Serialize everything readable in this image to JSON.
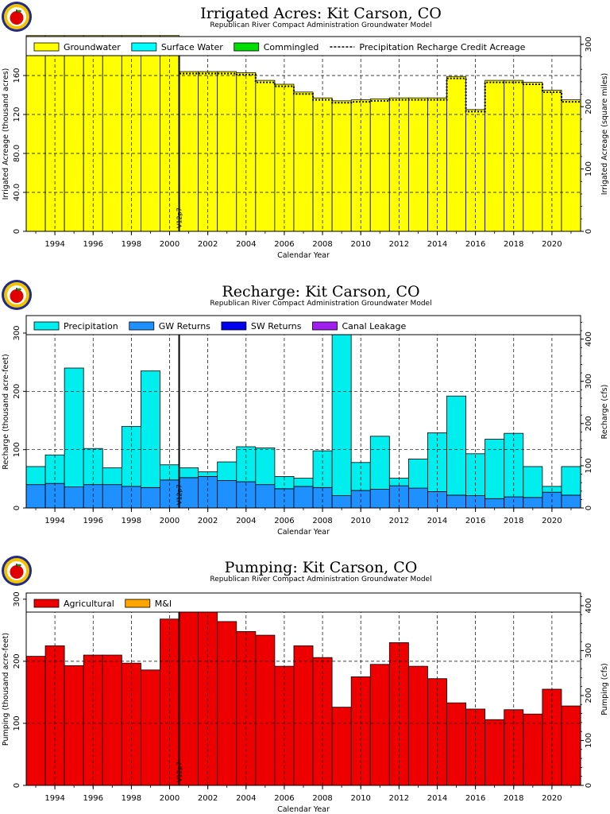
{
  "chart_data": [
    {
      "type": "bar",
      "title": "Irrigated Acres: Kit Carson, CO",
      "subtitle": "Republican River Compact Administration Groundwater Model",
      "xlabel": "Calendar Year",
      "ylabel": "Irrigated Acreage (thousand acres)",
      "ylabel_right": "Irrigated Acreage (square miles)",
      "ylim": [
        0,
        200
      ],
      "yticks": [
        "0",
        "40.0",
        "80.0",
        "120",
        "160"
      ],
      "ytick_values": [
        0,
        40,
        80,
        120,
        160
      ],
      "y2lim": [
        0,
        312.5
      ],
      "y2ticks": [
        "0",
        "100",
        "200",
        "300"
      ],
      "y2tick_values": [
        0,
        100,
        200,
        300
      ],
      "xticks": [
        "1994",
        "1996",
        "1998",
        "2000",
        "2002",
        "2004",
        "2006",
        "2008",
        "2010",
        "2012",
        "2014",
        "2016",
        "2018",
        "2020"
      ],
      "legend": [
        "Groundwater",
        "Surface Water",
        "Commingled",
        "Precipitation Recharge Credit Acreage"
      ],
      "legend_colors": [
        "#ffff00",
        "#00ffff",
        "#00dd00",
        "#000000"
      ],
      "grid": true,
      "marker": "V12p7",
      "marker_year": 2000.5,
      "categories": [
        1993,
        1994,
        1995,
        1996,
        1997,
        1998,
        1999,
        2000,
        2001,
        2002,
        2003,
        2004,
        2005,
        2006,
        2007,
        2008,
        2009,
        2010,
        2011,
        2012,
        2013,
        2014,
        2015,
        2016,
        2017,
        2018,
        2019,
        2020,
        2021
      ],
      "series": [
        {
          "name": "Groundwater",
          "color": "#ffff00",
          "values": [
            201,
            201,
            201,
            201,
            201,
            201,
            201,
            201,
            164,
            164,
            164,
            163,
            155,
            151,
            143,
            137,
            134,
            135,
            136,
            137,
            137,
            137,
            159,
            125,
            155,
            155,
            153,
            145,
            135
          ]
        },
        {
          "name": "Precipitation Recharge Credit Acreage",
          "color": "#000000",
          "values": [
            197,
            197,
            197,
            197,
            197,
            197,
            197,
            197,
            162,
            162,
            162,
            161,
            153,
            149,
            141,
            135,
            132,
            133,
            134,
            135,
            135,
            135,
            157,
            123,
            153,
            153,
            151,
            143,
            133
          ]
        }
      ]
    },
    {
      "type": "bar",
      "title": "Recharge: Kit Carson, CO",
      "subtitle": "Republican River Compact Administration Groundwater Model",
      "xlabel": "Calendar Year",
      "ylabel": "Recharge (thousand acre-feet)",
      "ylabel_right": "Recharge (cfs)",
      "ylim": [
        0,
        330
      ],
      "yticks": [
        "0",
        "100",
        "200",
        "300"
      ],
      "ytick_values": [
        0,
        100,
        200,
        300
      ],
      "y2lim": [
        0,
        455.8
      ],
      "y2ticks": [
        "0",
        "100",
        "200",
        "300",
        "400"
      ],
      "y2tick_values": [
        0,
        100,
        200,
        300,
        400
      ],
      "xticks": [
        "1994",
        "1996",
        "1998",
        "2000",
        "2002",
        "2004",
        "2006",
        "2008",
        "2010",
        "2012",
        "2014",
        "2016",
        "2018",
        "2020"
      ],
      "legend": [
        "Precipitation",
        "GW Returns",
        "SW Returns",
        "Canal Leakage"
      ],
      "legend_colors": [
        "#00eeee",
        "#1e90ff",
        "#0000ee",
        "#a020f0"
      ],
      "grid": true,
      "marker": "V12p7",
      "marker_year": 2000.5,
      "categories": [
        1993,
        1994,
        1995,
        1996,
        1997,
        1998,
        1999,
        2000,
        2001,
        2002,
        2003,
        2004,
        2005,
        2006,
        2007,
        2008,
        2009,
        2010,
        2011,
        2012,
        2013,
        2014,
        2015,
        2016,
        2017,
        2018,
        2019,
        2020,
        2021
      ],
      "series": [
        {
          "name": "GW Returns",
          "color": "#1e90ff",
          "values": [
            40,
            42,
            36,
            40,
            40,
            37,
            35,
            48,
            52,
            54,
            47,
            45,
            40,
            33,
            37,
            35,
            21,
            30,
            32,
            38,
            34,
            28,
            22,
            21,
            16,
            19,
            18,
            27,
            22
          ]
        },
        {
          "name": "Precipitation",
          "color": "#00eeee",
          "values": [
            31,
            49,
            204,
            62,
            29,
            103,
            200,
            26,
            17,
            8,
            32,
            60,
            63,
            21,
            14,
            63,
            309,
            48,
            91,
            13,
            50,
            101,
            170,
            72,
            102,
            109,
            53,
            10,
            49
          ]
        }
      ]
    },
    {
      "type": "bar",
      "title": "Pumping: Kit Carson, CO",
      "subtitle": "Republican River Compact Administration Groundwater Model",
      "xlabel": "Calendar Year",
      "ylabel": "Pumping (thousand acre-feet)",
      "ylabel_right": "Pumping (cfs)",
      "ylim": [
        0,
        310
      ],
      "yticks": [
        "0",
        "100",
        "200",
        "300"
      ],
      "ytick_values": [
        0,
        100,
        200,
        300
      ],
      "y2lim": [
        0,
        428.2
      ],
      "y2ticks": [
        "0",
        "100",
        "200",
        "300",
        "400"
      ],
      "y2tick_values": [
        0,
        100,
        200,
        300,
        400
      ],
      "xticks": [
        "1994",
        "1996",
        "1998",
        "2000",
        "2002",
        "2004",
        "2006",
        "2008",
        "2010",
        "2012",
        "2014",
        "2016",
        "2018",
        "2020"
      ],
      "legend": [
        "Agricultural",
        "M&I"
      ],
      "legend_colors": [
        "#ee0000",
        "#ffa500"
      ],
      "grid": true,
      "marker": "V12p7",
      "marker_year": 2000.5,
      "categories": [
        1993,
        1994,
        1995,
        1996,
        1997,
        1998,
        1999,
        2000,
        2001,
        2002,
        2003,
        2004,
        2005,
        2006,
        2007,
        2008,
        2009,
        2010,
        2011,
        2012,
        2013,
        2014,
        2015,
        2016,
        2017,
        2018,
        2019,
        2020,
        2021
      ],
      "series": [
        {
          "name": "Agricultural",
          "color": "#ee0000",
          "values": [
            208,
            225,
            193,
            210,
            210,
            197,
            186,
            268,
            294,
            305,
            264,
            248,
            242,
            192,
            225,
            206,
            126,
            175,
            195,
            230,
            192,
            172,
            133,
            123,
            106,
            122,
            115,
            155,
            128
          ]
        }
      ]
    }
  ]
}
